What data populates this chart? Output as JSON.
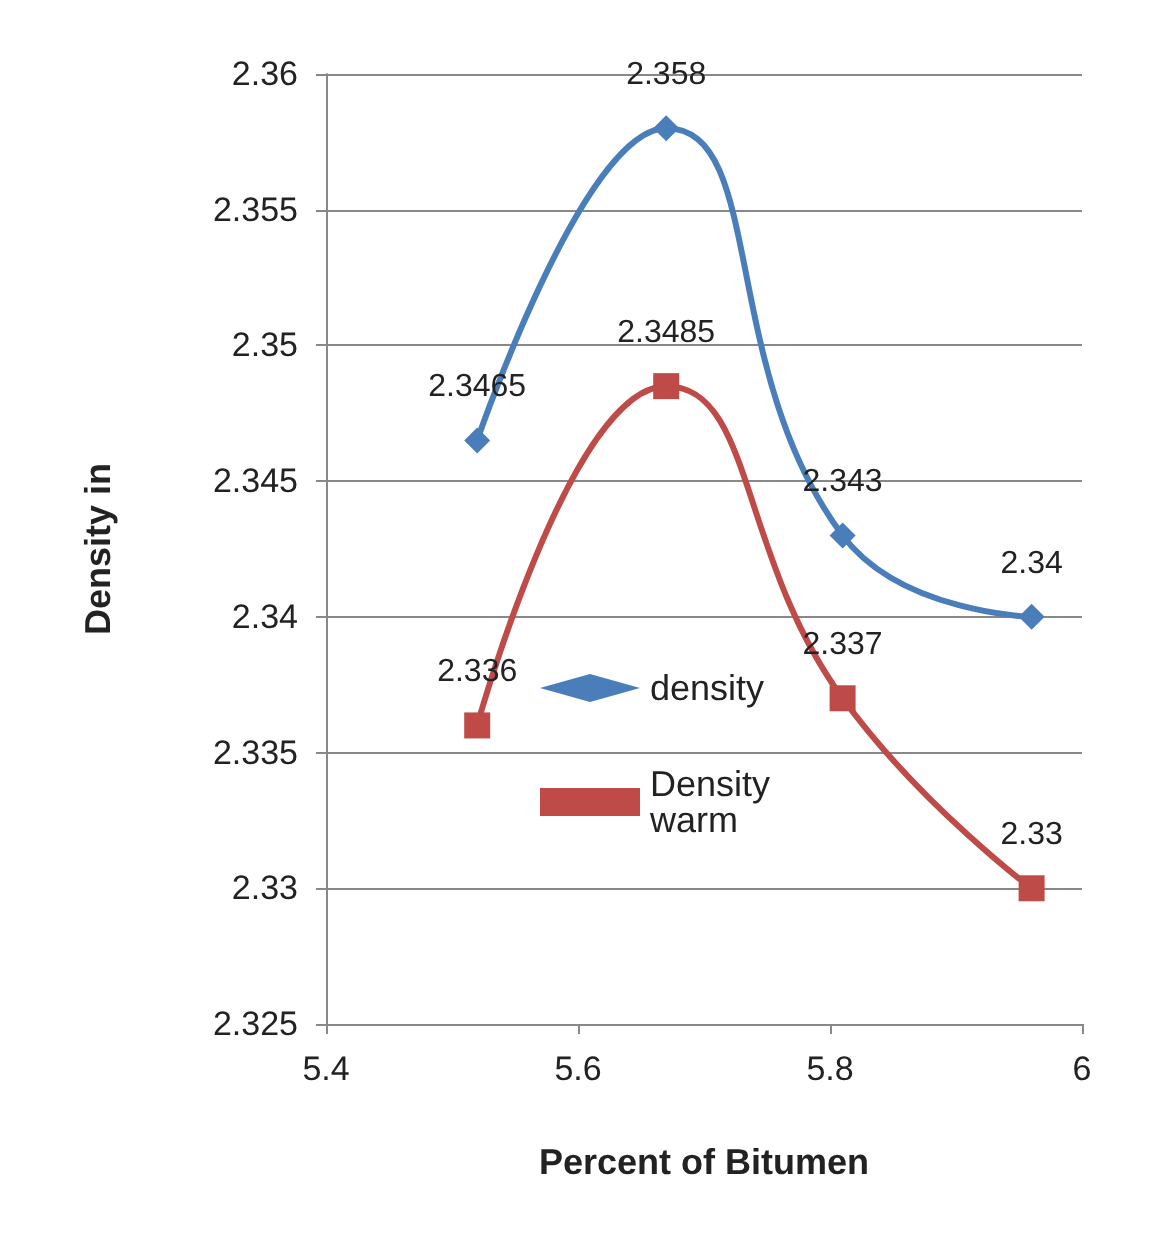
{
  "chart_data": {
    "type": "line",
    "xlabel": "Percent of Bitumen",
    "ylabel": "Density in",
    "x": [
      5.52,
      5.67,
      5.81,
      5.96
    ],
    "series": [
      {
        "name": "density",
        "color": "#4a7ebb",
        "marker": "diamond",
        "values": [
          2.3465,
          2.358,
          2.343,
          2.34
        ]
      },
      {
        "name": "Density warm",
        "color": "#be4b48",
        "marker": "square",
        "values": [
          2.336,
          2.3485,
          2.337,
          2.33
        ]
      }
    ],
    "xlim": [
      5.4,
      6
    ],
    "xticks": [
      5.4,
      5.6,
      5.8,
      6
    ],
    "ylim": [
      2.325,
      2.36
    ],
    "yticks": [
      2.325,
      2.33,
      2.335,
      2.34,
      2.345,
      2.35,
      2.355,
      2.36
    ],
    "grid": "y",
    "legend": "center",
    "data_labels": true
  }
}
